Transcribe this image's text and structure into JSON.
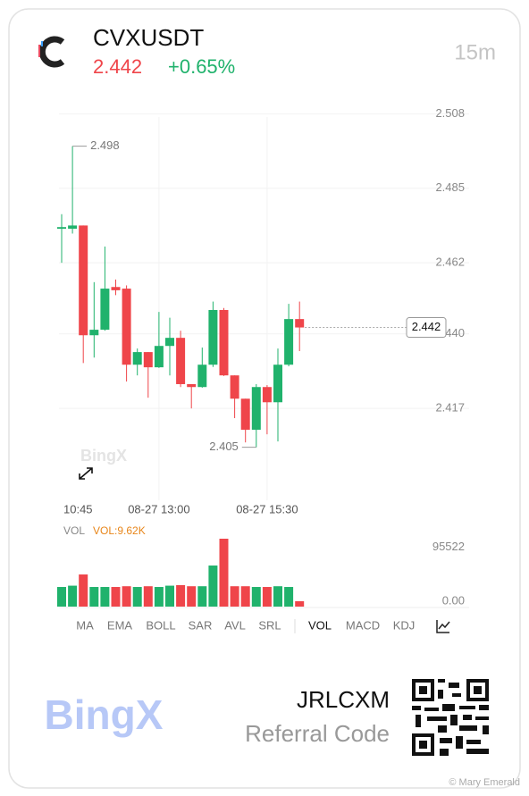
{
  "header": {
    "symbol": "CVXUSDT",
    "price": "2.442",
    "change": "+0.65%",
    "interval": "15m"
  },
  "chart_data": {
    "type": "candlestick",
    "categories": [
      "10:45",
      null,
      null,
      null,
      null,
      null,
      null,
      null,
      null,
      "08-27 13:00",
      null,
      null,
      null,
      null,
      null,
      null,
      null,
      null,
      null,
      "08-27 15:30",
      null,
      null,
      null
    ],
    "open": [
      2.4725,
      2.4725,
      2.4735,
      2.4396,
      2.4413,
      2.4545,
      2.454,
      2.4305,
      2.4344,
      2.4297,
      2.4363,
      2.4388,
      2.4245,
      2.4236,
      2.4305,
      2.4474,
      2.4272,
      2.42,
      2.4104,
      2.4236,
      2.4189,
      2.4305,
      2.4446
    ],
    "high": [
      2.477,
      2.498,
      2.4735,
      2.456,
      2.467,
      2.4568,
      2.455,
      2.4355,
      2.4344,
      2.4468,
      2.445,
      2.441,
      2.4245,
      2.4358,
      2.45,
      2.448,
      2.4272,
      2.42,
      2.4245,
      2.4242,
      2.4355,
      2.4493,
      2.45
    ],
    "low": [
      2.462,
      2.471,
      2.431,
      2.4327,
      2.441,
      2.452,
      2.4253,
      2.4272,
      2.4203,
      2.4295,
      2.4272,
      2.4236,
      2.417,
      2.4234,
      2.4298,
      2.427,
      2.414,
      2.4065,
      2.405,
      2.409,
      2.4068,
      2.43,
      2.4347
    ],
    "close": [
      2.473,
      2.4735,
      2.4396,
      2.4413,
      2.454,
      2.4535,
      2.4305,
      2.4344,
      2.4297,
      2.4363,
      2.4388,
      2.4245,
      2.4236,
      2.4305,
      2.4474,
      2.4272,
      2.42,
      2.4104,
      2.4236,
      2.4189,
      2.4305,
      2.4446,
      2.442
    ],
    "up_color": "#20b26c",
    "down_color": "#ef454a",
    "ylim": [
      2.39,
      2.507
    ],
    "yticks": [
      2.508,
      2.485,
      2.462,
      {
        "value": 2.44,
        "label": "2.440"
      },
      2.417
    ],
    "grid": true,
    "high_marker": 2.498,
    "low_marker": 2.405,
    "last_price": 2.442,
    "watermark": "BingX",
    "volume_label": "VOL",
    "volume_value": "VOL:9.62K",
    "volumes": [
      34700,
      37000,
      56800,
      34700,
      34700,
      34700,
      36000,
      34700,
      36000,
      34700,
      37000,
      38000,
      36000,
      36000,
      72600,
      120000,
      36000,
      36000,
      34700,
      34700,
      36000,
      34700,
      9620
    ],
    "vlim": [
      0,
      120000
    ],
    "vticks": [
      95522,
      {
        "value": 0,
        "label": "0.00"
      }
    ]
  },
  "tabs": [
    "MA",
    "EMA",
    "BOLL",
    "SAR",
    "AVL",
    "SRL",
    "VOL",
    "MACD",
    "KDJ"
  ],
  "footer": {
    "logo": "BingX",
    "code": "JRLCXM",
    "caption": "Referral Code",
    "credit": "© Mary Emerald"
  }
}
